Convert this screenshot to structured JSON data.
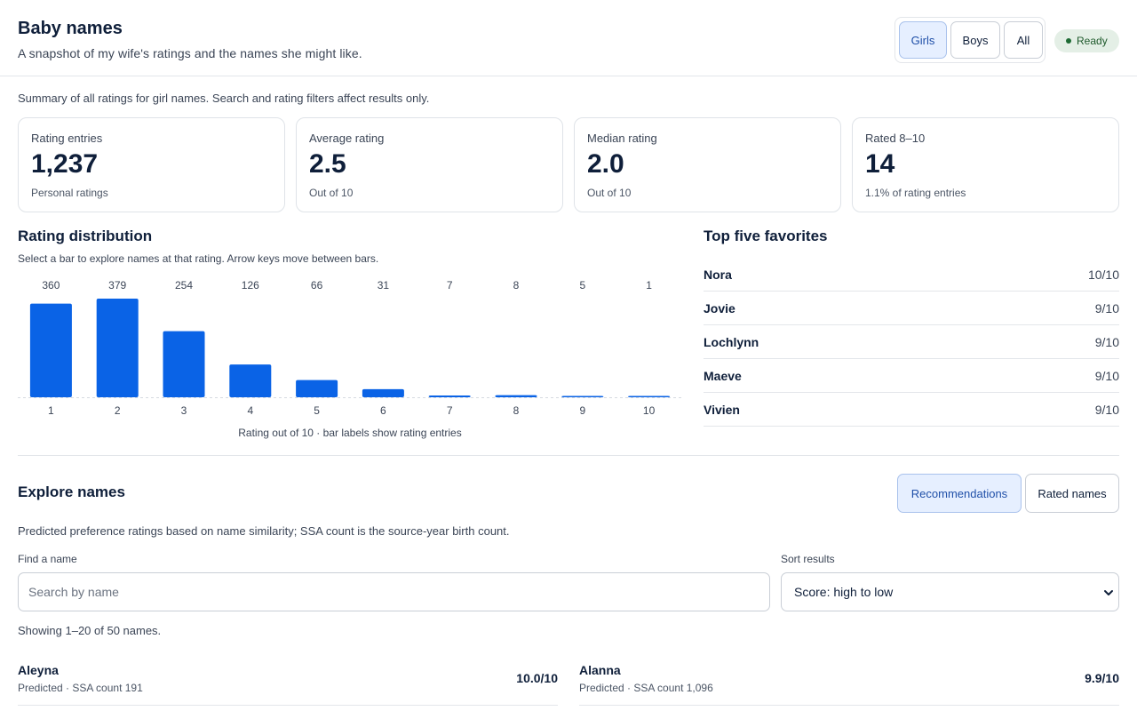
{
  "header": {
    "title": "Baby names",
    "subtitle": "A snapshot of my wife's ratings and the names she might like.",
    "filters": [
      "Girls",
      "Boys",
      "All"
    ],
    "active_filter": "Girls",
    "status": "Ready",
    "status_color": "#1e6b34"
  },
  "summary": {
    "note": "Summary of all ratings for girl names. Search and rating filters affect results only.",
    "cards": [
      {
        "label": "Rating entries",
        "value": "1,237",
        "sub": "Personal ratings"
      },
      {
        "label": "Average rating",
        "value": "2.5",
        "sub": "Out of 10"
      },
      {
        "label": "Median rating",
        "value": "2.0",
        "sub": "Out of 10"
      },
      {
        "label": "Rated 8–10",
        "value": "14",
        "sub": "1.1% of rating entries"
      }
    ]
  },
  "distribution": {
    "title": "Rating distribution",
    "hint": "Select a bar to explore names at that rating. Arrow keys move between bars.",
    "caption": "Rating out of 10 · bar labels show rating entries"
  },
  "chart_data": {
    "type": "bar",
    "categories": [
      "1",
      "2",
      "3",
      "4",
      "5",
      "6",
      "7",
      "8",
      "9",
      "10"
    ],
    "values": [
      360,
      379,
      254,
      126,
      66,
      31,
      7,
      8,
      5,
      1
    ],
    "title": "Rating distribution",
    "xlabel": "Rating out of 10 · bar labels show rating entries",
    "ylabel": "",
    "ylim": [
      0,
      379
    ],
    "grid": false,
    "bar_color": "#0a63e6"
  },
  "favorites": {
    "title": "Top five favorites",
    "items": [
      {
        "name": "Nora",
        "score": "10/10"
      },
      {
        "name": "Jovie",
        "score": "9/10"
      },
      {
        "name": "Lochlynn",
        "score": "9/10"
      },
      {
        "name": "Maeve",
        "score": "9/10"
      },
      {
        "name": "Vivien",
        "score": "9/10"
      }
    ]
  },
  "explore": {
    "title": "Explore names",
    "tabs": [
      "Recommendations",
      "Rated names"
    ],
    "active_tab": "Recommendations",
    "note": "Predicted preference ratings based on name similarity; SSA count is the source-year birth count.",
    "search_label": "Find a name",
    "search_placeholder": "Search by name",
    "search_value": "",
    "sort_label": "Sort results",
    "sort_value": "Score: high to low",
    "showing": "Showing 1–20 of 50 names.",
    "results": [
      {
        "name": "Aleyna",
        "meta": "Predicted · SSA count 191",
        "score": "10.0/10"
      },
      {
        "name": "Alanna",
        "meta": "Predicted · SSA count 1,096",
        "score": "9.9/10"
      }
    ]
  },
  "colors": {
    "accent": "#0a63e6",
    "active_bg": "#e6efff",
    "text": "#0f1f3a"
  }
}
